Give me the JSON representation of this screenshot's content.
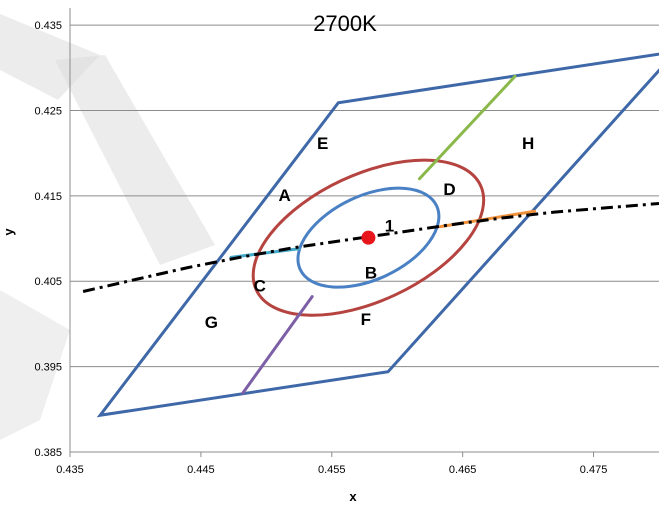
{
  "chart_data": {
    "type": "scatter",
    "title": "2700K",
    "xlabel": "x",
    "ylabel": "y",
    "xlim": [
      0.435,
      0.48
    ],
    "ylim": [
      0.385,
      0.437
    ],
    "x_ticks": [
      "0.435",
      "0.445",
      "0.455",
      "0.465",
      "0.475"
    ],
    "y_ticks": [
      "0.385",
      "0.395",
      "0.405",
      "0.415",
      "0.425",
      "0.435"
    ],
    "grid": "horizontal",
    "colors": {
      "quadrangle": "#3f68a8",
      "outer_ellipse": "#b5433f",
      "inner_ellipse": "#4a80c4",
      "center_point": "#e8151b",
      "blackbody": "#000000",
      "seg_top": "#8bb84a",
      "seg_right": "#f0913c",
      "seg_left": "#45a8c8",
      "seg_bottom": "#7c5fa6",
      "watermark": "#dcdcdc"
    },
    "center": {
      "x": 0.4578,
      "y": 0.4101,
      "label": "1"
    },
    "quadrangle": [
      [
        0.4373,
        0.3893
      ],
      [
        0.4593,
        0.3944
      ],
      [
        0.4813,
        0.4319
      ],
      [
        0.4555,
        0.4259
      ]
    ],
    "outer_ellipse": {
      "cx": 0.4578,
      "cy": 0.4101,
      "rx": 0.00945,
      "ry": 0.0074,
      "angle_deg": 25
    },
    "inner_ellipse": {
      "cx": 0.4578,
      "cy": 0.4101,
      "rx": 0.00575,
      "ry": 0.0049,
      "angle_deg": 25
    },
    "blackbody_curve": {
      "x": [
        0.436,
        0.44,
        0.444,
        0.448,
        0.452,
        0.456,
        0.46,
        0.464,
        0.468,
        0.472,
        0.476,
        0.48
      ],
      "y": [
        0.4038,
        0.4052,
        0.4066,
        0.4078,
        0.4089,
        0.4098,
        0.4107,
        0.4116,
        0.4124,
        0.4131,
        0.4136,
        0.4141
      ]
    },
    "segments": [
      {
        "name": "top",
        "from": [
          0.4617,
          0.417
        ],
        "to": [
          0.469,
          0.429
        ]
      },
      {
        "name": "right",
        "from": [
          0.4633,
          0.4114
        ],
        "to": [
          0.4705,
          0.4132
        ]
      },
      {
        "name": "left",
        "from": [
          0.4473,
          0.4078
        ],
        "to": [
          0.4525,
          0.4088
        ]
      },
      {
        "name": "bottom",
        "from": [
          0.4535,
          0.4032
        ],
        "to": [
          0.4482,
          0.3919
        ]
      }
    ],
    "region_labels": [
      {
        "text": "E",
        "x": 0.4543,
        "y": 0.4212
      },
      {
        "text": "H",
        "x": 0.47,
        "y": 0.4212
      },
      {
        "text": "A",
        "x": 0.4514,
        "y": 0.4151
      },
      {
        "text": "D",
        "x": 0.464,
        "y": 0.4158
      },
      {
        "text": "B",
        "x": 0.458,
        "y": 0.406
      },
      {
        "text": "C",
        "x": 0.4495,
        "y": 0.4045
      },
      {
        "text": "G",
        "x": 0.4458,
        "y": 0.4002
      },
      {
        "text": "F",
        "x": 0.4576,
        "y": 0.4006
      }
    ]
  }
}
